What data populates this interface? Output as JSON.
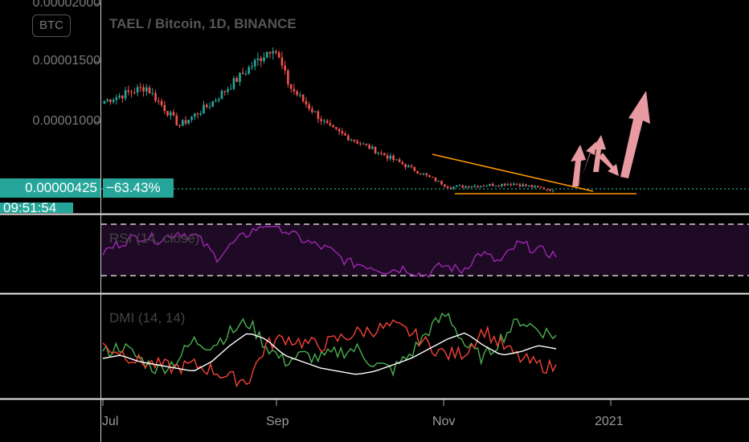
{
  "header": {
    "symbol_button": "BTC",
    "title": "TAEL / Bitcoin, 1D, BINANCE"
  },
  "price_panel": {
    "y_labels": [
      "0.00002000",
      "0.00001500",
      "0.00001000"
    ],
    "current_price": "0.00000425",
    "change": "−63.43%",
    "countdown": "09:51:54"
  },
  "indicators": {
    "rsi_title": "RSI (14, close)",
    "dmi_title": "DMI (14, 14)"
  },
  "x_axis": {
    "labels": [
      "Jul",
      "Sep",
      "Nov",
      "2021"
    ]
  },
  "colors": {
    "up": "#26a69a",
    "down": "#ef5350",
    "rsi": "#9c27b0",
    "trendline": "#ff9800",
    "arrows": "#f4a3a8",
    "dmi_plus": "#4caf50",
    "dmi_minus": "#f44336",
    "adx": "#ffffff"
  },
  "chart_data": [
    {
      "type": "candlestick",
      "title": "TAEL / Bitcoin, 1D, BINANCE",
      "ylim": [
        3e-06,
        2.1e-05
      ],
      "anchors": [
        {
          "x": "Jul",
          "close": 1.18e-05
        },
        {
          "x": "mid-Jul",
          "close": 1.3e-05
        },
        {
          "x": "late-Jul",
          "close": 9.7e-06
        },
        {
          "x": "early-Aug",
          "close": 1.15e-05
        },
        {
          "x": "Sep",
          "close": 1.65e-05
        },
        {
          "x": "mid-Sep",
          "close": 1.3e-05
        },
        {
          "x": "late-Sep",
          "close": 9.5e-06
        },
        {
          "x": "mid-Oct",
          "close": 7.5e-06
        },
        {
          "x": "Nov",
          "close": 4.5e-06
        },
        {
          "x": "mid-Nov",
          "close": 4.8e-06
        },
        {
          "x": "late-Nov",
          "close": 4.25e-06
        }
      ],
      "last": 4.25e-06
    },
    {
      "type": "line",
      "title": "RSI (14, close)",
      "ylim": [
        0,
        100
      ],
      "bands": [
        70,
        30
      ],
      "values": [
        48,
        56,
        61,
        58,
        64,
        60,
        44,
        56,
        66,
        72,
        62,
        55,
        50,
        40,
        38,
        34,
        36,
        30,
        38,
        34,
        48,
        40,
        55,
        50,
        46
      ]
    },
    {
      "type": "line",
      "title": "DMI (14, 14)",
      "series": [
        {
          "values": [
            25,
            30,
            22,
            15,
            20,
            33,
            30,
            38,
            45,
            30,
            20,
            24,
            22,
            26,
            28,
            18,
            15,
            25,
            40,
            50,
            30,
            22,
            35,
            46,
            40,
            36
          ]
        },
        {
          "values": [
            30,
            26,
            20,
            18,
            16,
            18,
            15,
            10,
            8,
            30,
            35,
            32,
            30,
            34,
            38,
            40,
            42,
            38,
            30,
            24,
            26,
            40,
            30,
            22,
            18,
            16
          ]
        },
        {
          "values": [
            22,
            24,
            20,
            18,
            16,
            14,
            20,
            30,
            38,
            34,
            24,
            20,
            16,
            14,
            12,
            14,
            18,
            22,
            28,
            34,
            38,
            30,
            24,
            26,
            30,
            28
          ]
        }
      ]
    }
  ]
}
